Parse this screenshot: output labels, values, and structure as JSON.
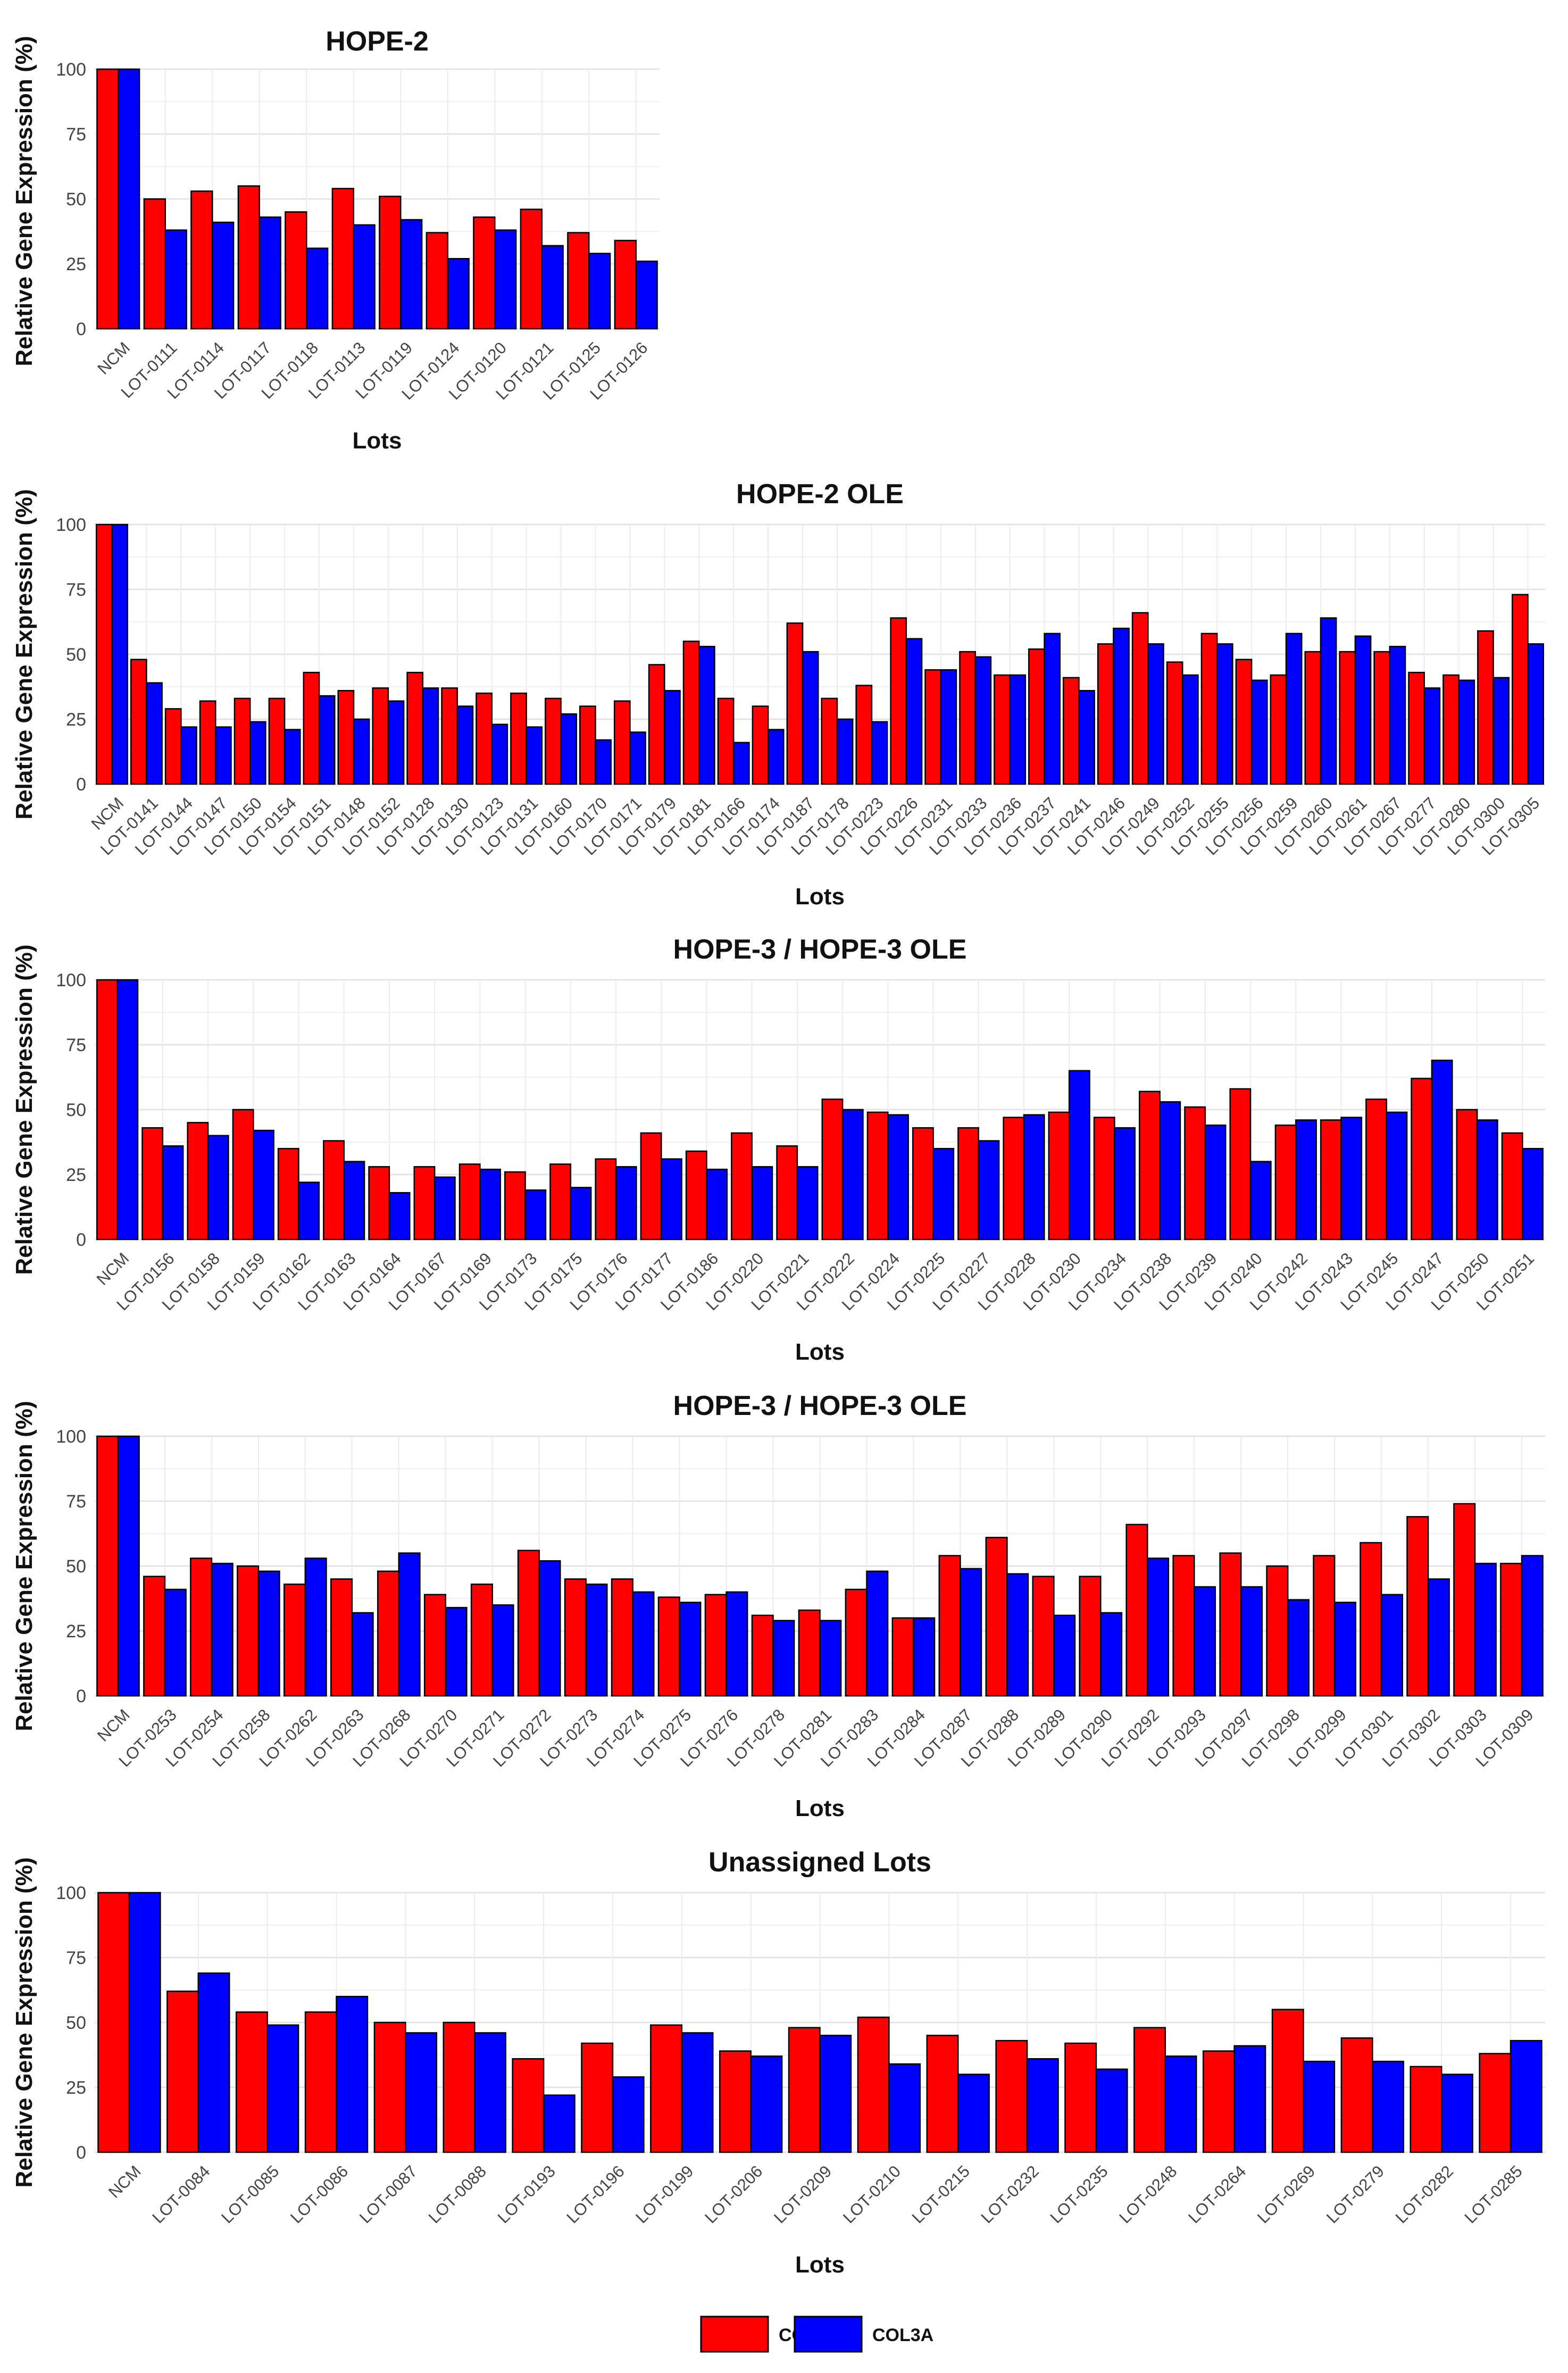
{
  "chart_data": [
    {
      "type": "bar",
      "title": "HOPE-2",
      "xlabel": "Lots",
      "ylabel": "Relative Gene Expression (%)",
      "ylim": [
        0,
        100
      ],
      "yticks": [
        "0",
        "25",
        "50",
        "75",
        "100"
      ],
      "categories": [
        "NCM",
        "LOT-0111",
        "LOT-0114",
        "LOT-0117",
        "LOT-0118",
        "LOT-0113",
        "LOT-0119",
        "LOT-0124",
        "LOT-0120",
        "LOT-0121",
        "LOT-0125",
        "LOT-0126"
      ],
      "series": [
        {
          "name": "COL1A",
          "values": [
            100,
            50,
            53,
            55,
            45,
            54,
            51,
            37,
            43,
            46,
            37,
            34
          ]
        },
        {
          "name": "COL3A",
          "values": [
            100,
            38,
            41,
            43,
            31,
            40,
            42,
            27,
            38,
            32,
            29,
            26
          ]
        }
      ]
    },
    {
      "type": "bar",
      "title": "HOPE-2 OLE",
      "xlabel": "Lots",
      "ylabel": "Relative Gene Expression (%)",
      "ylim": [
        0,
        100
      ],
      "yticks": [
        "0",
        "25",
        "50",
        "75",
        "100"
      ],
      "categories": [
        "NCM",
        "LOT-0141",
        "LOT-0144",
        "LOT-0147",
        "LOT-0150",
        "LOT-0154",
        "LOT-0151",
        "LOT-0148",
        "LOT-0152",
        "LOT-0128",
        "LOT-0130",
        "LOT-0123",
        "LOT-0131",
        "LOT-0160",
        "LOT-0170",
        "LOT-0171",
        "LOT-0179",
        "LOT-0181",
        "LOT-0166",
        "LOT-0174",
        "LOT-0187",
        "LOT-0178",
        "LOT-0223",
        "LOT-0226",
        "LOT-0231",
        "LOT-0233",
        "LOT-0236",
        "LOT-0237",
        "LOT-0241",
        "LOT-0246",
        "LOT-0249",
        "LOT-0252",
        "LOT-0255",
        "LOT-0256",
        "LOT-0259",
        "LOT-0260",
        "LOT-0261",
        "LOT-0267",
        "LOT-0277",
        "LOT-0280",
        "LOT-0300",
        "LOT-0305"
      ],
      "series": [
        {
          "name": "COL1A",
          "values": [
            100,
            48,
            29,
            32,
            33,
            33,
            43,
            36,
            37,
            43,
            37,
            35,
            35,
            33,
            30,
            32,
            46,
            55,
            33,
            30,
            62,
            33,
            38,
            64,
            44,
            51,
            42,
            52,
            41,
            54,
            66,
            47,
            58,
            48,
            42,
            51,
            51,
            51,
            43,
            42,
            59,
            73
          ]
        },
        {
          "name": "COL3A",
          "values": [
            100,
            39,
            22,
            22,
            24,
            21,
            34,
            25,
            32,
            37,
            30,
            23,
            22,
            27,
            17,
            20,
            36,
            53,
            16,
            21,
            51,
            25,
            24,
            56,
            44,
            49,
            42,
            58,
            36,
            60,
            54,
            42,
            54,
            40,
            58,
            64,
            57,
            53,
            37,
            40,
            41,
            54
          ]
        }
      ]
    },
    {
      "type": "bar",
      "title": "HOPE-3 / HOPE-3 OLE",
      "xlabel": "Lots",
      "ylabel": "Relative Gene Expression (%)",
      "ylim": [
        0,
        100
      ],
      "yticks": [
        "0",
        "25",
        "50",
        "75",
        "100"
      ],
      "categories": [
        "NCM",
        "LOT-0156",
        "LOT-0158",
        "LOT-0159",
        "LOT-0162",
        "LOT-0163",
        "LOT-0164",
        "LOT-0167",
        "LOT-0169",
        "LOT-0173",
        "LOT-0175",
        "LOT-0176",
        "LOT-0177",
        "LOT-0186",
        "LOT-0220",
        "LOT-0221",
        "LOT-0222",
        "LOT-0224",
        "LOT-0225",
        "LOT-0227",
        "LOT-0228",
        "LOT-0230",
        "LOT-0234",
        "LOT-0238",
        "LOT-0239",
        "LOT-0240",
        "LOT-0242",
        "LOT-0243",
        "LOT-0245",
        "LOT-0247",
        "LOT-0250",
        "LOT-0251"
      ],
      "series": [
        {
          "name": "COL1A",
          "values": [
            100,
            43,
            45,
            50,
            35,
            38,
            28,
            28,
            29,
            26,
            29,
            31,
            41,
            34,
            41,
            36,
            54,
            49,
            43,
            43,
            47,
            49,
            47,
            57,
            51,
            58,
            44,
            46,
            54,
            62,
            50,
            41
          ]
        },
        {
          "name": "COL3A",
          "values": [
            100,
            36,
            40,
            42,
            22,
            30,
            18,
            24,
            27,
            19,
            20,
            28,
            31,
            27,
            28,
            28,
            50,
            48,
            35,
            38,
            48,
            65,
            43,
            53,
            44,
            30,
            46,
            47,
            49,
            69,
            46,
            35
          ]
        }
      ]
    },
    {
      "type": "bar",
      "title": "HOPE-3 / HOPE-3 OLE",
      "xlabel": "Lots",
      "ylabel": "Relative Gene Expression (%)",
      "ylim": [
        0,
        100
      ],
      "yticks": [
        "0",
        "25",
        "50",
        "75",
        "100"
      ],
      "categories": [
        "NCM",
        "LOT-0253",
        "LOT-0254",
        "LOT-0258",
        "LOT-0262",
        "LOT-0263",
        "LOT-0268",
        "LOT-0270",
        "LOT-0271",
        "LOT-0272",
        "LOT-0273",
        "LOT-0274",
        "LOT-0275",
        "LOT-0276",
        "LOT-0278",
        "LOT-0281",
        "LOT-0283",
        "LOT-0284",
        "LOT-0287",
        "LOT-0288",
        "LOT-0289",
        "LOT-0290",
        "LOT-0292",
        "LOT-0293",
        "LOT-0297",
        "LOT-0298",
        "LOT-0299",
        "LOT-0301",
        "LOT-0302",
        "LOT-0303",
        "LOT-0309"
      ],
      "series": [
        {
          "name": "COL1A",
          "values": [
            100,
            46,
            53,
            50,
            43,
            45,
            48,
            39,
            43,
            56,
            45,
            45,
            38,
            39,
            31,
            33,
            41,
            30,
            54,
            61,
            46,
            46,
            66,
            54,
            55,
            50,
            54,
            59,
            69,
            74,
            51
          ]
        },
        {
          "name": "COL3A",
          "values": [
            100,
            41,
            51,
            48,
            53,
            32,
            55,
            34,
            35,
            52,
            43,
            40,
            36,
            40,
            29,
            29,
            48,
            30,
            49,
            47,
            31,
            32,
            53,
            42,
            42,
            37,
            36,
            39,
            45,
            51,
            54
          ]
        }
      ]
    },
    {
      "type": "bar",
      "title": "Unassigned Lots",
      "xlabel": "Lots",
      "ylabel": "Relative Gene Expression (%)",
      "ylim": [
        0,
        100
      ],
      "yticks": [
        "0",
        "25",
        "50",
        "75",
        "100"
      ],
      "categories": [
        "NCM",
        "LOT-0084",
        "LOT-0085",
        "LOT-0086",
        "LOT-0087",
        "LOT-0088",
        "LOT-0193",
        "LOT-0196",
        "LOT-0199",
        "LOT-0206",
        "LOT-0209",
        "LOT-0210",
        "LOT-0215",
        "LOT-0232",
        "LOT-0235",
        "LOT-0248",
        "LOT-0264",
        "LOT-0269",
        "LOT-0279",
        "LOT-0282",
        "LOT-0285"
      ],
      "series": [
        {
          "name": "COL1A",
          "values": [
            100,
            62,
            54,
            54,
            50,
            50,
            36,
            42,
            49,
            39,
            48,
            52,
            45,
            43,
            42,
            48,
            39,
            55,
            44,
            33,
            38
          ]
        },
        {
          "name": "COL3A",
          "values": [
            100,
            69,
            49,
            60,
            46,
            46,
            22,
            29,
            46,
            37,
            45,
            34,
            30,
            36,
            32,
            37,
            41,
            35,
            35,
            30,
            43
          ]
        }
      ]
    }
  ],
  "legend": [
    {
      "name": "COL1A",
      "color": "#ff0000"
    },
    {
      "name": "COL3A",
      "color": "#0000ff"
    }
  ]
}
